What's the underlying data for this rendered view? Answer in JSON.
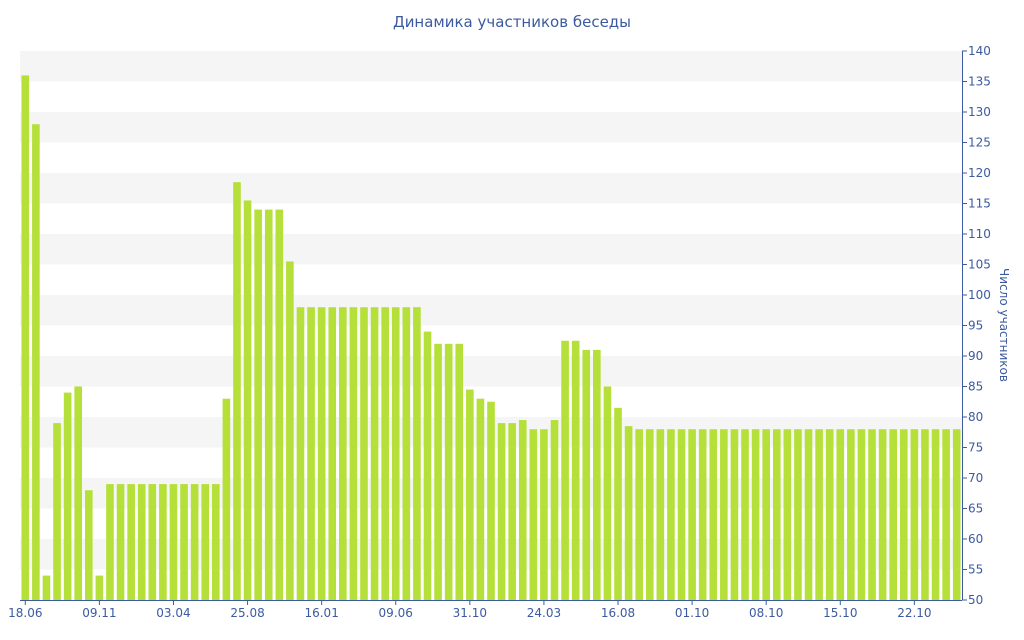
{
  "chart_data": {
    "type": "bar",
    "title": "Динамика участников беседы",
    "ylabel": "Число участников",
    "xlabel": "",
    "ylim": [
      50,
      140
    ],
    "y_ticks": [
      50,
      55,
      60,
      65,
      70,
      75,
      80,
      85,
      90,
      95,
      100,
      105,
      110,
      115,
      120,
      125,
      130,
      135,
      140
    ],
    "y_axis_side": "right",
    "grid": "alternating horizontal bands",
    "legend": "none",
    "bar_color": "#b5e03a",
    "band_color": "#f5f5f5",
    "text_color": "#3c5aa0",
    "x_tick_labels": [
      "18.06",
      "09.11",
      "03.04",
      "25.08",
      "16.01",
      "09.06",
      "31.10",
      "24.03",
      "16.08",
      "01.10",
      "08.10",
      "15.10",
      "22.10"
    ],
    "x_tick_bar_index": [
      0,
      7,
      14,
      21,
      28,
      35,
      42,
      49,
      56,
      63,
      70,
      77,
      84
    ],
    "values": [
      136,
      128,
      54,
      79,
      84,
      85,
      68,
      54,
      69,
      69,
      69,
      69,
      69,
      69,
      69,
      69,
      69,
      69,
      69,
      83,
      118.5,
      115.5,
      114,
      114,
      114,
      105.5,
      98,
      98,
      98,
      98,
      98,
      98,
      98,
      98,
      98,
      98,
      98,
      98,
      94,
      92,
      92,
      92,
      84.5,
      83,
      82.5,
      79,
      79,
      79.5,
      78,
      78,
      79.5,
      92.5,
      92.5,
      91,
      91,
      85,
      81.5,
      78.5,
      78,
      78,
      78,
      78,
      78,
      78,
      78,
      78,
      78,
      78,
      78,
      78,
      78,
      78,
      78,
      78,
      78,
      78,
      78,
      78,
      78,
      78,
      78,
      78,
      78,
      78,
      78,
      78,
      78,
      78,
      78
    ]
  }
}
